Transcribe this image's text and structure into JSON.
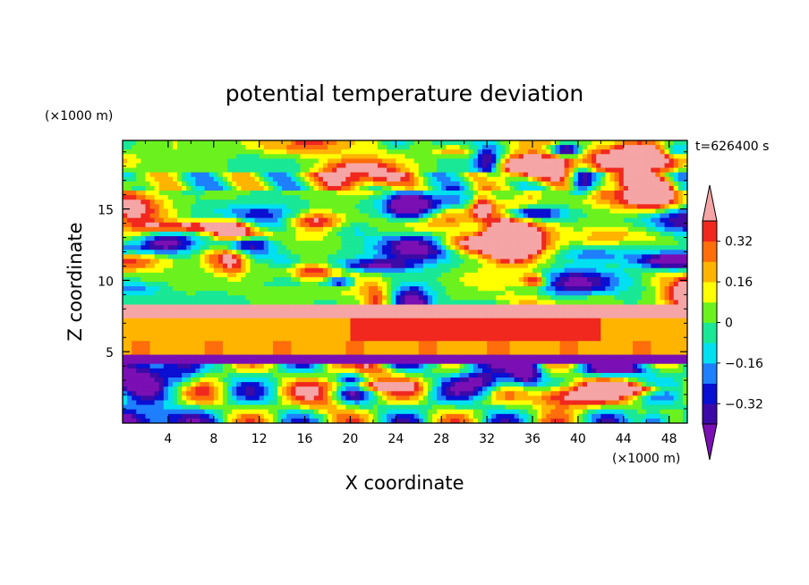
{
  "chart_data": {
    "type": "heatmap",
    "title": "potential temperature deviation",
    "time_label": "t=626400 s",
    "xlabel": "X coordinate",
    "ylabel": "Z coordinate",
    "x_unit": "(×1000 m)",
    "z_unit": "(×1000 m)",
    "xlim": [
      0,
      49.6
    ],
    "zlim": [
      0,
      19.8
    ],
    "x_ticks": [
      "4",
      "8",
      "12",
      "16",
      "20",
      "24",
      "28",
      "32",
      "36",
      "40",
      "44",
      "48"
    ],
    "z_ticks": [
      "5",
      "10",
      "15"
    ],
    "colorbar": {
      "levels": [
        -0.4,
        -0.32,
        -0.24,
        -0.16,
        -0.08,
        0,
        0.08,
        0.16,
        0.24,
        0.32,
        0.4
      ],
      "tick_labels": [
        "0.32",
        "0.16",
        "0",
        "−0.16",
        "−0.32"
      ],
      "tick_values": [
        0.32,
        0.16,
        0,
        -0.16,
        -0.32
      ],
      "colors": [
        "#7a0fb4",
        "#3c0aa6",
        "#0a0fd2",
        "#1e7fff",
        "#00e0f0",
        "#19e896",
        "#6bf21e",
        "#ffff00",
        "#ffb400",
        "#ff6e0a",
        "#f0281e",
        "#f5a5a5"
      ]
    }
  }
}
